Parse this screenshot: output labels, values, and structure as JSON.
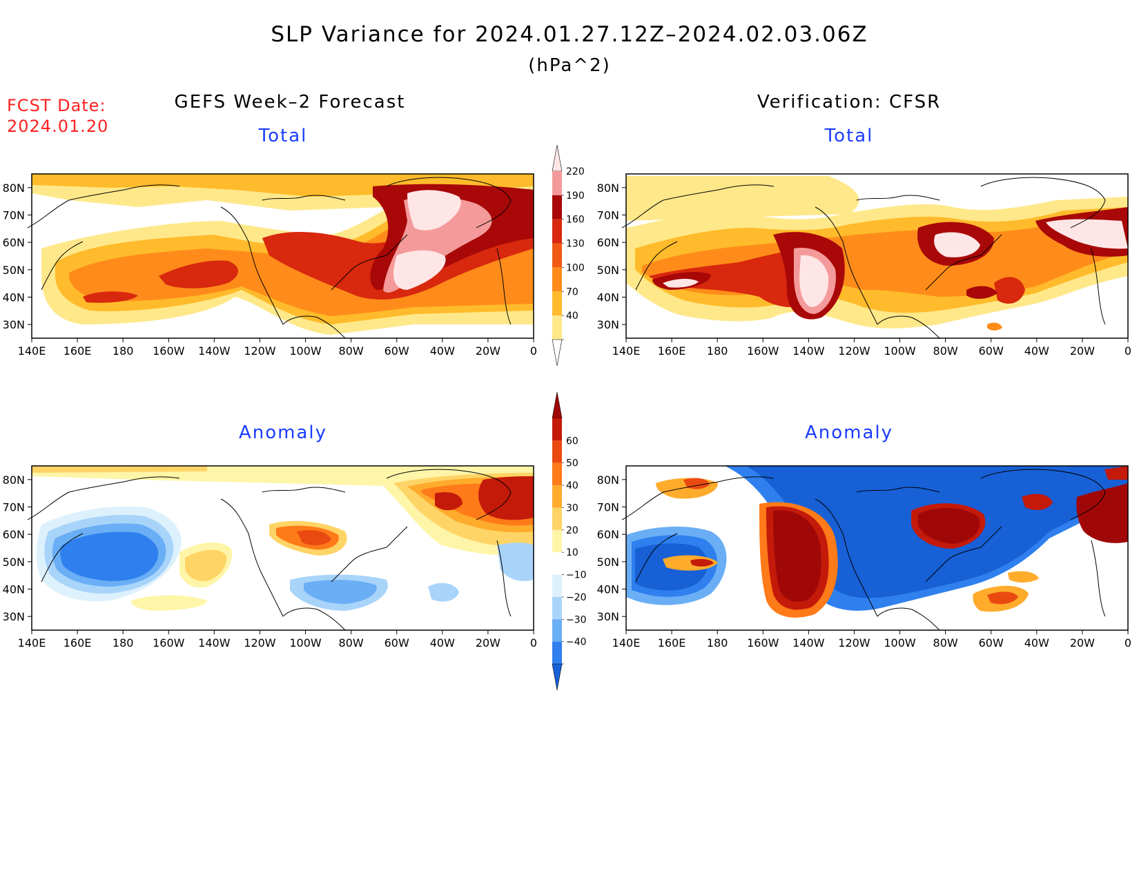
{
  "header": {
    "title": "SLP Variance for 2024.01.27.12Z–2024.02.03.06Z",
    "units": "(hPa^2)",
    "fcst_label": "FCST Date:",
    "fcst_date": "2024.01.20"
  },
  "columns": {
    "left": "GEFS Week–2 Forecast",
    "right": "Verification: CFSR"
  },
  "panels": {
    "total": "Total",
    "anomaly": "Anomaly"
  },
  "axes": {
    "lat_labels": [
      "80N",
      "70N",
      "60N",
      "50N",
      "40N",
      "30N"
    ],
    "lat_values": [
      80,
      70,
      60,
      50,
      40,
      30
    ],
    "lon_labels": [
      "140E",
      "160E",
      "180",
      "160W",
      "140W",
      "120W",
      "100W",
      "80W",
      "60W",
      "40W",
      "20W",
      "0"
    ],
    "lon_values": [
      140,
      160,
      180,
      200,
      220,
      240,
      260,
      280,
      300,
      320,
      340,
      360
    ],
    "lat_range": [
      25,
      85
    ],
    "lon_range": [
      140,
      360
    ]
  },
  "colorbars": {
    "total": {
      "levels": [
        "40",
        "70",
        "100",
        "130",
        "160",
        "190",
        "220"
      ],
      "colors": [
        "#ffffff",
        "#ffe88a",
        "#ffbb2b",
        "#ff8c1a",
        "#f05a14",
        "#d8280e",
        "#a80808",
        "#f49a9a",
        "#ffe6e6"
      ]
    },
    "anomaly": {
      "levels": [
        "−40",
        "−30",
        "−20",
        "−10",
        "10",
        "20",
        "30",
        "40",
        "50",
        "60"
      ],
      "colors": [
        "#1760d6",
        "#2f80ee",
        "#6aaef5",
        "#a9d4fa",
        "#ddf1fd",
        "#ffffff",
        "#fff5a8",
        "#ffd466",
        "#ffab2c",
        "#ff7a18",
        "#ea4a10",
        "#c41a0a",
        "#a00808"
      ]
    }
  },
  "map_data": {
    "gefs_total": [
      {
        "lon": 280,
        "lat": 60,
        "rx": 85,
        "ry": 30,
        "level": 3
      },
      {
        "lon": 180,
        "lat": 45,
        "rx": 45,
        "ry": 14,
        "level": 2
      },
      {
        "lon": 212,
        "lat": 50,
        "rx": 14,
        "ry": 9,
        "level": 4
      },
      {
        "lon": 262,
        "lat": 58,
        "rx": 20,
        "ry": 9,
        "level": 4
      },
      {
        "lon": 316,
        "lat": 60,
        "rx": 32,
        "ry": 18,
        "level": 6
      },
      {
        "lon": 318,
        "lat": 60,
        "rx": 22,
        "ry": 12,
        "level": 7
      }
    ],
    "cfsr_total": [
      {
        "lon": 190,
        "lat": 45,
        "rx": 16,
        "ry": 5,
        "level": 6
      },
      {
        "lon": 222,
        "lat": 50,
        "rx": 12,
        "ry": 12,
        "level": 7
      },
      {
        "lon": 283,
        "lat": 60,
        "rx": 8,
        "ry": 5,
        "level": 7
      },
      {
        "lon": 335,
        "lat": 60,
        "rx": 14,
        "ry": 6,
        "level": 6
      },
      {
        "lon": 300,
        "lat": 45,
        "rx": 18,
        "ry": 10,
        "level": 4
      }
    ],
    "gefs_anomaly": [
      {
        "lon": 180,
        "lat": 52,
        "rx": 24,
        "ry": 13,
        "level": -4
      },
      {
        "lon": 265,
        "lat": 43,
        "rx": 14,
        "ry": 5,
        "level": -3
      },
      {
        "lon": 262,
        "lat": 58,
        "rx": 12,
        "ry": 6,
        "level": 4
      },
      {
        "lon": 214,
        "lat": 48,
        "rx": 8,
        "ry": 6,
        "level": 3
      },
      {
        "lon": 325,
        "lat": 72,
        "rx": 22,
        "ry": 10,
        "level": 5
      }
    ],
    "cfsr_anomaly": [
      {
        "lon": 222,
        "lat": 50,
        "rx": 10,
        "ry": 18,
        "level": 6
      },
      {
        "lon": 288,
        "lat": 62,
        "rx": 14,
        "ry": 7,
        "level": 6
      },
      {
        "lon": 260,
        "lat": 57,
        "rx": 25,
        "ry": 20,
        "level": -4
      },
      {
        "lon": 200,
        "lat": 74,
        "rx": 30,
        "ry": 7,
        "level": -4
      },
      {
        "lon": 165,
        "lat": 40,
        "rx": 12,
        "ry": 5,
        "level": -4
      }
    ]
  }
}
